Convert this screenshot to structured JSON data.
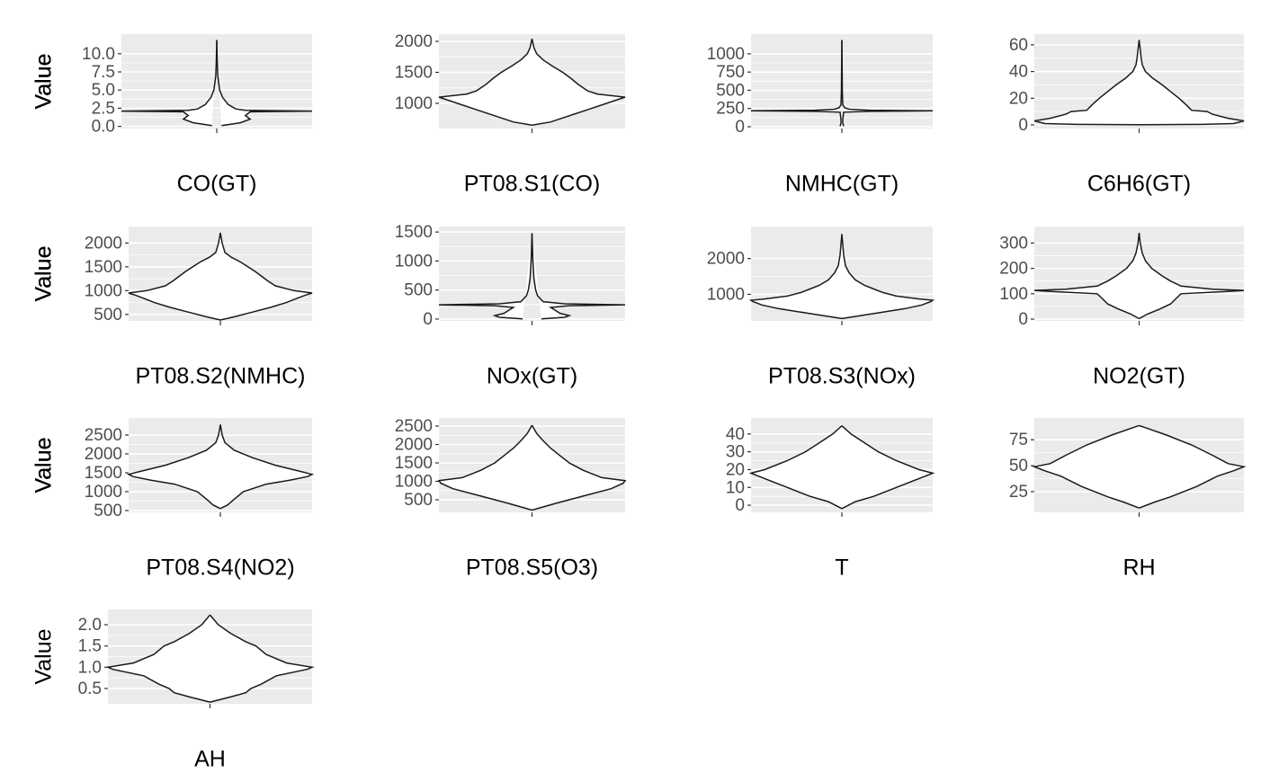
{
  "chart_data": [
    {
      "type": "violin",
      "xlabel": "CO(GT)",
      "ylabel": "Value",
      "grid": true,
      "ylim": [
        -0.3,
        12.7
      ],
      "yticks": [
        {
          "value": 0,
          "label": "0.0"
        },
        2.5,
        {
          "value": 5,
          "label": "5.0"
        },
        7.5,
        {
          "value": 10,
          "label": "10.0"
        }
      ],
      "profile": {
        "y": [
          0.1,
          0.5,
          1,
          1.5,
          2.0,
          2.1,
          2.2,
          2.4,
          3,
          4,
          5,
          6,
          7,
          9,
          11.9
        ],
        "density": [
          0.05,
          0.25,
          0.35,
          0.3,
          0.35,
          1,
          0.3,
          0.2,
          0.12,
          0.06,
          0.03,
          0.02,
          0.01,
          0.005,
          0
        ]
      }
    },
    {
      "type": "violin",
      "xlabel": "PT08.S1(CO)",
      "ylabel": "Value",
      "grid": true,
      "ylim": [
        594,
        2116
      ],
      "yticks": [
        1000,
        1500,
        2000
      ],
      "profile": {
        "y": [
          647,
          700,
          800,
          900,
          1000,
          1050,
          1100,
          1150,
          1200,
          1300,
          1400,
          1500,
          1600,
          1700,
          1800,
          1900,
          2040
        ],
        "density": [
          0,
          0.2,
          0.4,
          0.6,
          0.8,
          0.9,
          1,
          0.7,
          0.6,
          0.5,
          0.42,
          0.33,
          0.22,
          0.12,
          0.05,
          0.02,
          0
        ]
      }
    },
    {
      "type": "violin",
      "xlabel": "NMHC(GT)",
      "ylabel": "Value",
      "grid": true,
      "ylim": [
        -25,
        1270
      ],
      "yticks": [
        0,
        250,
        500,
        750,
        1000
      ],
      "profile": {
        "y": [
          7,
          50,
          100,
          200,
          210,
          218,
          226,
          240,
          260,
          300,
          500,
          800,
          1189
        ],
        "density": [
          0.02,
          0.01,
          0.01,
          0.02,
          0.3,
          1,
          0.3,
          0.08,
          0.03,
          0.01,
          0.005,
          0.003,
          0
        ]
      }
    },
    {
      "type": "violin",
      "xlabel": "C6H6(GT)",
      "ylabel": "Value",
      "grid": true,
      "ylim": [
        -2.7,
        68
      ],
      "yticks": [
        0,
        20,
        40,
        60
      ],
      "profile": {
        "y": [
          0.1,
          0.4,
          1,
          3,
          5,
          8,
          10,
          11,
          15,
          20,
          25,
          30,
          35,
          40,
          45,
          50,
          63.7
        ],
        "density": [
          0,
          0.6,
          0.9,
          1,
          0.85,
          0.7,
          0.65,
          0.5,
          0.45,
          0.38,
          0.3,
          0.22,
          0.13,
          0.06,
          0.03,
          0.02,
          0
        ]
      }
    },
    {
      "type": "violin",
      "xlabel": "PT08.S2(NMHC)",
      "ylabel": "Value",
      "grid": true,
      "ylim": [
        365,
        2346
      ],
      "yticks": [
        500,
        1000,
        1500,
        2000
      ],
      "profile": {
        "y": [
          383,
          450,
          550,
          650,
          750,
          850,
          920,
          950,
          1000,
          1100,
          1200,
          1300,
          1400,
          1500,
          1600,
          1700,
          1800,
          2000,
          2214
        ],
        "density": [
          0,
          0.15,
          0.35,
          0.55,
          0.72,
          0.85,
          0.95,
          1,
          0.8,
          0.6,
          0.52,
          0.45,
          0.38,
          0.3,
          0.22,
          0.12,
          0.05,
          0.02,
          0
        ]
      }
    },
    {
      "type": "violin",
      "xlabel": "NOx(GT)",
      "ylabel": "Value",
      "grid": true,
      "ylim": [
        -32,
        1595
      ],
      "yticks": [
        0,
        500,
        1000,
        1500
      ],
      "profile": {
        "y": [
          2,
          30,
          60,
          100,
          150,
          200,
          230,
          246,
          262,
          300,
          400,
          500,
          700,
          1000,
          1479
        ],
        "density": [
          0.1,
          0.35,
          0.4,
          0.3,
          0.25,
          0.2,
          0.4,
          1,
          0.35,
          0.12,
          0.06,
          0.04,
          0.02,
          0.01,
          0
        ]
      }
    },
    {
      "type": "violin",
      "xlabel": "PT08.S3(NOx)",
      "ylabel": "Value",
      "grid": true,
      "ylim": [
        256,
        2897
      ],
      "yticks": [
        1000,
        2000
      ],
      "profile": {
        "y": [
          322,
          400,
          500,
          600,
          700,
          800,
          835,
          870,
          950,
          1050,
          1150,
          1250,
          1400,
          1600,
          1800,
          2100,
          2683
        ],
        "density": [
          0,
          0.2,
          0.45,
          0.7,
          0.88,
          0.98,
          1,
          0.85,
          0.6,
          0.45,
          0.35,
          0.25,
          0.15,
          0.08,
          0.04,
          0.02,
          0
        ]
      }
    },
    {
      "type": "violin",
      "xlabel": "NO2(GT)",
      "ylabel": "Value",
      "grid": true,
      "ylim": [
        -7,
        365
      ],
      "yticks": [
        0,
        100,
        200,
        300
      ],
      "profile": {
        "y": [
          2,
          20,
          40,
          60,
          80,
          100,
          108,
          113,
          118,
          130,
          150,
          170,
          200,
          230,
          260,
          300,
          340
        ],
        "density": [
          0,
          0.08,
          0.2,
          0.3,
          0.35,
          0.4,
          0.8,
          1,
          0.7,
          0.4,
          0.3,
          0.22,
          0.12,
          0.06,
          0.03,
          0.01,
          0
        ]
      }
    },
    {
      "type": "violin",
      "xlabel": "PT08.S4(NO2)",
      "ylabel": "Value",
      "grid": true,
      "ylim": [
        452,
        2952
      ],
      "yticks": [
        500,
        1000,
        1500,
        2000,
        2500
      ],
      "profile": {
        "y": [
          551,
          650,
          800,
          1000,
          1200,
          1300,
          1400,
          1460,
          1550,
          1700,
          1900,
          2100,
          2300,
          2500,
          2775
        ],
        "density": [
          0,
          0.08,
          0.15,
          0.25,
          0.5,
          0.75,
          0.95,
          1,
          0.85,
          0.6,
          0.35,
          0.15,
          0.05,
          0.02,
          0
        ]
      }
    },
    {
      "type": "violin",
      "xlabel": "PT08.S5(O3)",
      "ylabel": "Value",
      "grid": true,
      "ylim": [
        159,
        2720
      ],
      "yticks": [
        500,
        1000,
        1500,
        2000,
        2500
      ],
      "profile": {
        "y": [
          221,
          400,
          600,
          800,
          950,
          1020,
          1100,
          1300,
          1500,
          1700,
          1900,
          2100,
          2300,
          2523
        ],
        "density": [
          0,
          0.25,
          0.55,
          0.85,
          0.98,
          1,
          0.75,
          0.55,
          0.4,
          0.3,
          0.2,
          0.12,
          0.05,
          0
        ]
      }
    },
    {
      "type": "violin",
      "xlabel": "T",
      "ylabel": "Value",
      "grid": true,
      "ylim": [
        -4,
        49
      ],
      "yticks": [
        0,
        10,
        20,
        30,
        40
      ],
      "profile": {
        "y": [
          -1.9,
          2,
          5,
          10,
          15,
          18,
          20,
          25,
          30,
          35,
          40,
          44.6
        ],
        "density": [
          0,
          0.15,
          0.35,
          0.6,
          0.85,
          1,
          0.85,
          0.6,
          0.4,
          0.25,
          0.1,
          0
        ]
      }
    },
    {
      "type": "violin",
      "xlabel": "RH",
      "ylabel": "Value",
      "grid": true,
      "ylim": [
        5,
        96
      ],
      "yticks": [
        25,
        50,
        75
      ],
      "profile": {
        "y": [
          9.2,
          15,
          20,
          30,
          40,
          45,
          49,
          52,
          60,
          70,
          80,
          88.7
        ],
        "density": [
          0,
          0.15,
          0.3,
          0.55,
          0.75,
          0.9,
          1,
          0.85,
          0.7,
          0.5,
          0.25,
          0
        ]
      }
    },
    {
      "type": "violin",
      "xlabel": "AH",
      "ylabel": "Value",
      "grid": true,
      "ylim": [
        0.14,
        2.36
      ],
      "yticks": [
        0.5,
        {
          "value": 1,
          "label": "1.0"
        },
        1.5,
        {
          "value": 2,
          "label": "2.0"
        }
      ],
      "profile": {
        "y": [
          0.18,
          0.3,
          0.4,
          0.5,
          0.6,
          0.8,
          0.95,
          1.0,
          1.1,
          1.3,
          1.5,
          1.6,
          1.8,
          2.0,
          2.23
        ],
        "density": [
          0,
          0.2,
          0.35,
          0.4,
          0.5,
          0.65,
          0.95,
          1,
          0.75,
          0.55,
          0.45,
          0.35,
          0.2,
          0.08,
          0
        ]
      }
    }
  ]
}
